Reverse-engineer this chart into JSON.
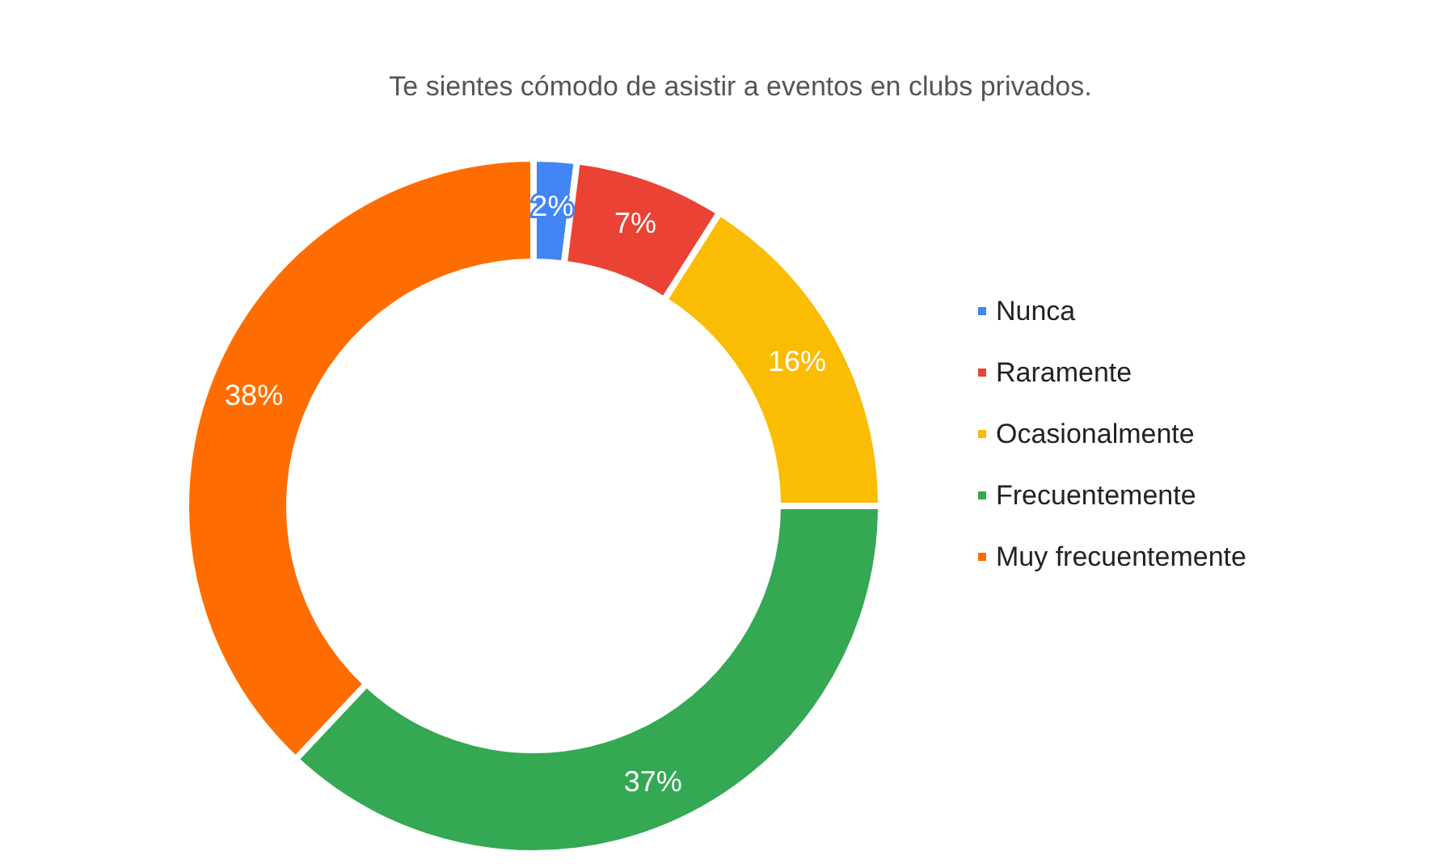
{
  "chart_data": {
    "type": "donut",
    "title": "Te sientes cómodo de asistir a eventos en clubs privados.",
    "categories": [
      "Nunca",
      "Raramente",
      "Ocasionalmente",
      "Frecuentemente",
      "Muy frecuentemente"
    ],
    "values": [
      2,
      7,
      16,
      37,
      38
    ],
    "colors": [
      "#4285f4",
      "#ea4335",
      "#fbbc04",
      "#34a853",
      "#ff6d01"
    ],
    "value_labels": [
      "2%",
      "7%",
      "16%",
      "37%",
      "38%"
    ],
    "legend": "right"
  }
}
